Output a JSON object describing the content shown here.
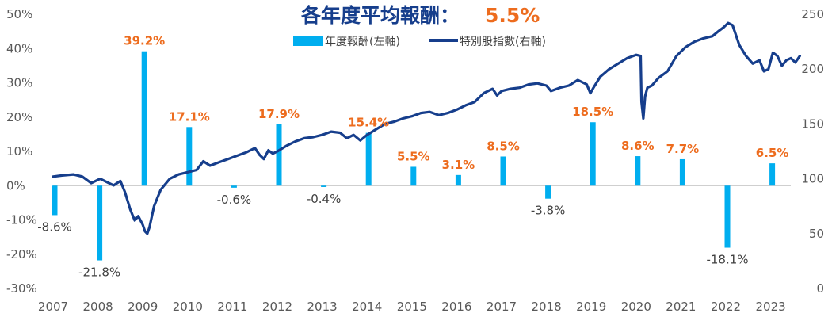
{
  "chart_data": {
    "type": "bar+line",
    "title": "各年度平均報酬：",
    "title_value": "5.5%",
    "colors": {
      "bar": "#00aeef",
      "line": "#163e8c",
      "positive_label": "#ed6c1e",
      "negative_label": "#404040",
      "title": "#163e8c"
    },
    "categories": [
      "2007",
      "2008",
      "2009",
      "2010",
      "2011",
      "2012",
      "2013",
      "2014",
      "2015",
      "2016",
      "2017",
      "2018",
      "2019",
      "2020",
      "2021",
      "2022",
      "2023"
    ],
    "left_axis": {
      "ylim": [
        -30,
        50
      ],
      "ticks": [
        "-30%",
        "-20%",
        "-10%",
        "0%",
        "10%",
        "20%",
        "30%",
        "40%",
        "50%"
      ]
    },
    "right_axis": {
      "ylim": [
        0,
        250
      ],
      "ticks": [
        "0",
        "50",
        "100",
        "150",
        "200",
        "250"
      ]
    },
    "legend": [
      {
        "name": "年度報酬(左軸)",
        "kind": "bar"
      },
      {
        "name": "特別股指數(右軸)",
        "kind": "line"
      }
    ],
    "legend_position": "top-center",
    "bars": {
      "name": "年度報酬(左軸)",
      "values": [
        -8.6,
        -21.8,
        39.2,
        17.1,
        -0.6,
        17.9,
        -0.4,
        15.4,
        5.5,
        3.1,
        8.5,
        -3.8,
        18.5,
        8.6,
        7.7,
        -18.1,
        6.5
      ],
      "labels": [
        "-8.6%",
        "-21.8%",
        "39.2%",
        "17.1%",
        "-0.6%",
        "17.9%",
        "-0.4%",
        "15.4%",
        "5.5%",
        "3.1%",
        "8.5%",
        "-3.8%",
        "18.5%",
        "8.6%",
        "7.7%",
        "-18.1%",
        "6.5%"
      ]
    },
    "line": {
      "name": "特別股指數(右軸)",
      "x": [
        2007.0,
        2007.2,
        2007.45,
        2007.65,
        2007.85,
        2008.05,
        2008.2,
        2008.35,
        2008.5,
        2008.6,
        2008.72,
        2008.82,
        2008.9,
        2009.0,
        2009.05,
        2009.1,
        2009.15,
        2009.25,
        2009.4,
        2009.6,
        2009.8,
        2010.0,
        2010.2,
        2010.35,
        2010.5,
        2010.7,
        2010.9,
        2011.1,
        2011.3,
        2011.5,
        2011.6,
        2011.7,
        2011.8,
        2011.9,
        2012.0,
        2012.2,
        2012.4,
        2012.6,
        2012.8,
        2013.0,
        2013.2,
        2013.4,
        2013.55,
        2013.7,
        2013.85,
        2014.0,
        2014.2,
        2014.4,
        2014.6,
        2014.8,
        2015.0,
        2015.2,
        2015.4,
        2015.6,
        2015.8,
        2016.0,
        2016.2,
        2016.4,
        2016.6,
        2016.8,
        2016.9,
        2017.0,
        2017.2,
        2017.4,
        2017.6,
        2017.8,
        2018.0,
        2018.1,
        2018.3,
        2018.5,
        2018.7,
        2018.9,
        2018.98,
        2019.05,
        2019.2,
        2019.4,
        2019.6,
        2019.8,
        2020.0,
        2020.1,
        2020.12,
        2020.16,
        2020.2,
        2020.25,
        2020.35,
        2020.5,
        2020.7,
        2020.9,
        2021.1,
        2021.3,
        2021.5,
        2021.7,
        2021.85,
        2021.95,
        2022.05,
        2022.15,
        2022.3,
        2022.45,
        2022.6,
        2022.75,
        2022.85,
        2022.95,
        2023.05,
        2023.15,
        2023.25,
        2023.35,
        2023.45,
        2023.55,
        2023.65
      ],
      "y": [
        102,
        103,
        104,
        102,
        96,
        100,
        97,
        94,
        98,
        88,
        72,
        62,
        66,
        58,
        52,
        50,
        56,
        75,
        90,
        100,
        104,
        106,
        108,
        116,
        112,
        115,
        118,
        121,
        124,
        128,
        122,
        118,
        126,
        123,
        125,
        130,
        134,
        137,
        138,
        140,
        143,
        142,
        137,
        140,
        135,
        140,
        145,
        150,
        152,
        155,
        157,
        160,
        161,
        158,
        160,
        163,
        167,
        170,
        178,
        182,
        176,
        180,
        182,
        183,
        186,
        187,
        185,
        180,
        183,
        185,
        190,
        186,
        178,
        183,
        193,
        200,
        205,
        210,
        213,
        212,
        170,
        155,
        175,
        183,
        185,
        192,
        198,
        212,
        220,
        225,
        228,
        230,
        235,
        238,
        242,
        240,
        222,
        212,
        205,
        208,
        198,
        200,
        215,
        212,
        203,
        208,
        210,
        206,
        212
      ]
    }
  }
}
